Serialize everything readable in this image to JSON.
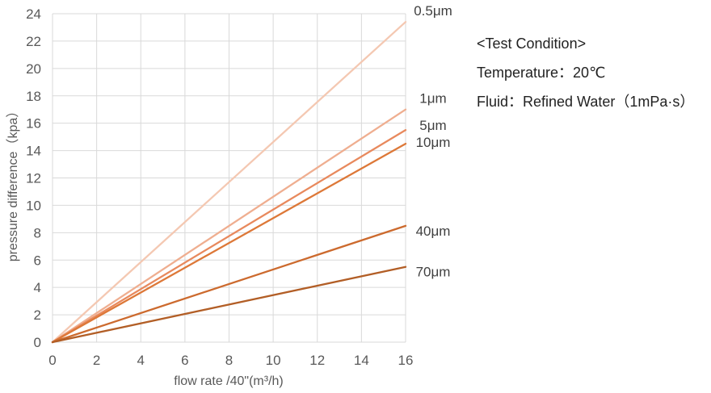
{
  "chart_data": {
    "type": "line",
    "xlabel": "flow rate /40\"(m³/h)",
    "ylabel": "pressure difference（kpa）",
    "xlim": [
      0,
      16
    ],
    "ylim": [
      0,
      24
    ],
    "xticks": [
      "0",
      "2",
      "4",
      "6",
      "8",
      "10",
      "12",
      "14",
      "16"
    ],
    "yticks": [
      "0",
      "2",
      "4",
      "6",
      "8",
      "10",
      "12",
      "14",
      "16",
      "18",
      "20",
      "22",
      "24"
    ],
    "grid": true,
    "legend": "none (series labelled at line ends, right side)",
    "series": [
      {
        "name": "0.5μm",
        "color": "#F4C8B2",
        "x": [
          0,
          16
        ],
        "y": [
          0,
          23.4
        ]
      },
      {
        "name": "1μm",
        "color": "#EFAE90",
        "x": [
          0,
          16
        ],
        "y": [
          0,
          17.0
        ]
      },
      {
        "name": "5μm",
        "color": "#E8895D",
        "x": [
          0,
          16
        ],
        "y": [
          0,
          15.5
        ]
      },
      {
        "name": "10μm",
        "color": "#DD7838",
        "x": [
          0,
          16
        ],
        "y": [
          0,
          14.5
        ]
      },
      {
        "name": "40μm",
        "color": "#CC6A2E",
        "x": [
          0,
          16
        ],
        "y": [
          0,
          8.5
        ]
      },
      {
        "name": "70μm",
        "color": "#B25E26",
        "x": [
          0,
          16
        ],
        "y": [
          0,
          5.5
        ]
      }
    ]
  },
  "test_condition": {
    "heading": "<Test Condition>",
    "temperature": "Temperature：20℃",
    "fluid": "Fluid：Refined Water（1mPa·s）"
  }
}
